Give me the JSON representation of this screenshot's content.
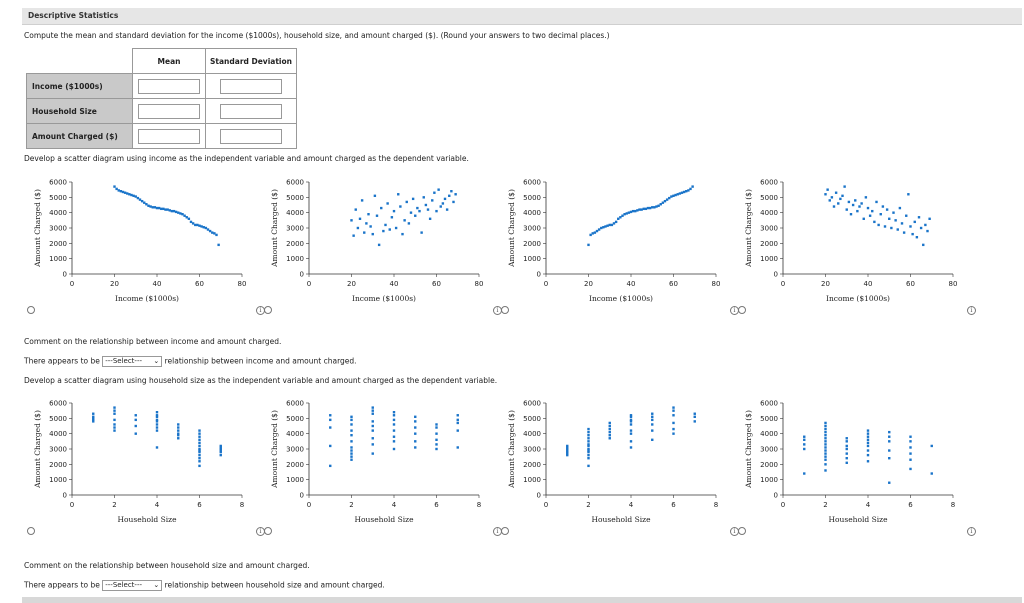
{
  "window": {
    "title": "Descriptive Statistics"
  },
  "instructions": "Compute the mean and standard deviation for the income ($1000s), household size, and amount charged ($). (Round your answers to two decimal places.)",
  "stats_table": {
    "col_mean": "Mean",
    "col_sd": "Standard Deviation",
    "rows": [
      {
        "label": "Income ($1000s)"
      },
      {
        "label": "Household Size"
      },
      {
        "label": "Amount Charged ($)"
      }
    ]
  },
  "section1": {
    "prompt": "Develop a scatter diagram using income as the independent variable and amount charged as the dependent variable.",
    "comment": "Comment on the relationship between income and amount charged.",
    "sentence_pre": "There appears to be",
    "select_value": "---Select---",
    "sentence_post": "relationship between income and amount charged."
  },
  "section2": {
    "prompt": "Develop a scatter diagram using household size as the independent variable and amount charged as the dependent variable.",
    "comment": "Comment on the relationship between household size and amount charged.",
    "sentence_pre": "There appears to be",
    "select_value": "---Select---",
    "sentence_post": "relationship between household size and amount charged."
  },
  "info_glyph": "i",
  "chart_data": [
    {
      "type": "scatter",
      "xlabel": "Income ($1000s)",
      "ylabel": "Amount Charged ($)",
      "xlim": [
        0,
        80
      ],
      "ylim": [
        0,
        6000
      ],
      "xticks": [
        0,
        20,
        40,
        60,
        80
      ],
      "yticks": [
        0,
        1000,
        2000,
        3000,
        4000,
        5000,
        6000
      ],
      "color": "#1a74c9",
      "x": [
        20,
        21,
        22,
        23,
        24,
        25,
        26,
        27,
        28,
        29,
        30,
        31,
        32,
        33,
        34,
        35,
        36,
        37,
        38,
        39,
        40,
        41,
        42,
        43,
        44,
        45,
        46,
        47,
        48,
        49,
        50,
        51,
        52,
        53,
        54,
        55,
        56,
        57,
        58,
        59,
        60,
        61,
        62,
        63,
        64,
        65,
        66,
        67,
        68,
        69
      ],
      "y": [
        5700,
        5550,
        5450,
        5400,
        5350,
        5300,
        5250,
        5200,
        5150,
        5100,
        5050,
        4950,
        4850,
        4750,
        4650,
        4550,
        4450,
        4400,
        4350,
        4350,
        4300,
        4300,
        4250,
        4250,
        4200,
        4200,
        4150,
        4100,
        4100,
        4050,
        4000,
        3950,
        3900,
        3800,
        3700,
        3600,
        3400,
        3300,
        3200,
        3200,
        3150,
        3100,
        3050,
        3000,
        2900,
        2800,
        2700,
        2650,
        2550,
        1900
      ]
    },
    {
      "type": "scatter",
      "xlabel": "Income ($1000s)",
      "ylabel": "Amount Charged ($)",
      "xlim": [
        0,
        80
      ],
      "ylim": [
        0,
        6000
      ],
      "xticks": [
        0,
        20,
        40,
        60,
        80
      ],
      "yticks": [
        0,
        1000,
        2000,
        3000,
        4000,
        5000,
        6000
      ],
      "color": "#1a74c9",
      "x": [
        20,
        21,
        22,
        23,
        24,
        25,
        26,
        27,
        28,
        29,
        30,
        31,
        32,
        33,
        34,
        35,
        36,
        37,
        38,
        39,
        40,
        41,
        42,
        43,
        44,
        45,
        46,
        47,
        48,
        49,
        50,
        51,
        52,
        53,
        54,
        55,
        56,
        57,
        58,
        59,
        60,
        61,
        62,
        63,
        64,
        65,
        66,
        67,
        68,
        69
      ],
      "y": [
        3500,
        2500,
        4200,
        3000,
        3600,
        4800,
        2700,
        3300,
        3900,
        3100,
        2600,
        5100,
        3800,
        1900,
        4300,
        2800,
        3200,
        4600,
        2900,
        3700,
        4100,
        3000,
        5200,
        4400,
        2600,
        3500,
        4700,
        3300,
        4000,
        4900,
        3800,
        4300,
        4100,
        2700,
        5000,
        4500,
        4200,
        3600,
        4800,
        5300,
        4100,
        5500,
        4400,
        4600,
        4900,
        4200,
        5100,
        5400,
        4700,
        5200
      ]
    },
    {
      "type": "scatter",
      "xlabel": "Income ($1000s)",
      "ylabel": "Amount Charged ($)",
      "xlim": [
        0,
        80
      ],
      "ylim": [
        0,
        6000
      ],
      "xticks": [
        0,
        20,
        40,
        60,
        80
      ],
      "yticks": [
        0,
        1000,
        2000,
        3000,
        4000,
        5000,
        6000
      ],
      "color": "#1a74c9",
      "x": [
        20,
        21,
        22,
        23,
        24,
        25,
        26,
        27,
        28,
        29,
        30,
        31,
        32,
        33,
        34,
        35,
        36,
        37,
        38,
        39,
        40,
        41,
        42,
        43,
        44,
        45,
        46,
        47,
        48,
        49,
        50,
        51,
        52,
        53,
        54,
        55,
        56,
        57,
        58,
        59,
        60,
        61,
        62,
        63,
        64,
        65,
        66,
        67,
        68,
        69
      ],
      "y": [
        1900,
        2550,
        2650,
        2700,
        2800,
        2900,
        3000,
        3050,
        3100,
        3150,
        3200,
        3200,
        3300,
        3400,
        3600,
        3700,
        3800,
        3900,
        3950,
        4000,
        4050,
        4100,
        4100,
        4150,
        4200,
        4200,
        4250,
        4250,
        4300,
        4300,
        4350,
        4350,
        4400,
        4450,
        4550,
        4650,
        4750,
        4850,
        4950,
        5050,
        5100,
        5150,
        5200,
        5250,
        5300,
        5350,
        5400,
        5450,
        5550,
        5700
      ]
    },
    {
      "type": "scatter",
      "xlabel": "Income ($1000s)",
      "ylabel": "Amount Charged ($)",
      "xlim": [
        0,
        80
      ],
      "ylim": [
        0,
        6000
      ],
      "xticks": [
        0,
        20,
        40,
        60,
        80
      ],
      "yticks": [
        0,
        1000,
        2000,
        3000,
        4000,
        5000,
        6000
      ],
      "color": "#1a74c9",
      "x": [
        20,
        21,
        22,
        23,
        24,
        25,
        26,
        27,
        28,
        29,
        30,
        31,
        32,
        33,
        34,
        35,
        36,
        37,
        38,
        39,
        40,
        41,
        42,
        43,
        44,
        45,
        46,
        47,
        48,
        49,
        50,
        51,
        52,
        53,
        54,
        55,
        56,
        57,
        58,
        59,
        60,
        61,
        62,
        63,
        64,
        65,
        66,
        67,
        68,
        69
      ],
      "y": [
        5200,
        5500,
        4800,
        5000,
        4400,
        5300,
        4600,
        4900,
        5100,
        5700,
        4200,
        4700,
        3900,
        4500,
        4800,
        4100,
        4400,
        4600,
        3600,
        5000,
        4300,
        3800,
        4100,
        3400,
        4700,
        3200,
        3900,
        4400,
        3100,
        4200,
        3600,
        3000,
        4000,
        3500,
        2900,
        4300,
        3300,
        2700,
        3800,
        5200,
        3100,
        2600,
        3400,
        2400,
        3700,
        3000,
        1900,
        3200,
        2800,
        3600
      ]
    },
    {
      "type": "scatter",
      "xlabel": "Household Size",
      "ylabel": "Amount Charged ($)",
      "xlim": [
        0,
        8
      ],
      "ylim": [
        0,
        6000
      ],
      "xticks": [
        0,
        2,
        4,
        6,
        8
      ],
      "yticks": [
        0,
        1000,
        2000,
        3000,
        4000,
        5000,
        6000
      ],
      "color": "#1a74c9",
      "x": [
        1,
        1,
        1,
        1,
        1,
        2,
        2,
        2,
        2,
        2,
        2,
        2,
        3,
        3,
        3,
        3,
        4,
        4,
        4,
        4,
        4,
        4,
        4,
        4,
        4,
        5,
        5,
        5,
        5,
        5,
        5,
        6,
        6,
        6,
        6,
        6,
        6,
        6,
        6,
        6,
        6,
        6,
        6,
        6,
        7,
        7,
        7,
        7,
        7,
        7
      ],
      "y": [
        5300,
        5100,
        5000,
        4900,
        4800,
        5700,
        5500,
        5300,
        4900,
        4600,
        4400,
        4200,
        5200,
        4900,
        4500,
        4000,
        5400,
        5200,
        5100,
        4900,
        4800,
        4600,
        4400,
        4200,
        3100,
        4600,
        4400,
        4200,
        4000,
        3900,
        3700,
        4200,
        4000,
        3800,
        3600,
        3400,
        3200,
        3000,
        2900,
        2800,
        2600,
        2400,
        2200,
        1900,
        3200,
        3100,
        3000,
        2900,
        2800,
        2600
      ]
    },
    {
      "type": "scatter",
      "xlabel": "Household Size",
      "ylabel": "Amount Charged ($)",
      "xlim": [
        0,
        8
      ],
      "ylim": [
        0,
        6000
      ],
      "xticks": [
        0,
        2,
        4,
        6,
        8
      ],
      "yticks": [
        0,
        1000,
        2000,
        3000,
        4000,
        5000,
        6000
      ],
      "color": "#1a74c9",
      "x": [
        1,
        1,
        1,
        1,
        1,
        2,
        2,
        2,
        2,
        2,
        2,
        2,
        2,
        2,
        2,
        2,
        3,
        3,
        3,
        3,
        3,
        3,
        3,
        3,
        3,
        4,
        4,
        4,
        4,
        4,
        4,
        4,
        4,
        5,
        5,
        5,
        5,
        5,
        5,
        6,
        6,
        6,
        6,
        6,
        6,
        7,
        7,
        7,
        7,
        7
      ],
      "y": [
        5200,
        4900,
        4400,
        3200,
        1900,
        5100,
        4900,
        4600,
        4200,
        3900,
        3500,
        3100,
        2900,
        2700,
        2500,
        2300,
        5700,
        5500,
        5300,
        4800,
        4500,
        4200,
        3700,
        3300,
        2700,
        5400,
        5200,
        4900,
        4600,
        4200,
        3800,
        3500,
        3000,
        5100,
        4800,
        4400,
        4000,
        3500,
        3100,
        4600,
        4400,
        4000,
        3600,
        3300,
        3000,
        5200,
        4900,
        4700,
        4200,
        3100
      ]
    },
    {
      "type": "scatter",
      "xlabel": "Household Size",
      "ylabel": "Amount Charged ($)",
      "xlim": [
        0,
        8
      ],
      "ylim": [
        0,
        6000
      ],
      "xticks": [
        0,
        2,
        4,
        6,
        8
      ],
      "yticks": [
        0,
        1000,
        2000,
        3000,
        4000,
        5000,
        6000
      ],
      "color": "#1a74c9",
      "x": [
        1,
        1,
        1,
        1,
        1,
        1,
        1,
        2,
        2,
        2,
        2,
        2,
        2,
        2,
        2,
        2,
        2,
        2,
        2,
        2,
        3,
        3,
        3,
        3,
        3,
        3,
        4,
        4,
        4,
        4,
        4,
        4,
        4,
        4,
        4,
        5,
        5,
        5,
        5,
        5,
        5,
        6,
        6,
        6,
        6,
        6,
        6,
        7,
        7,
        7
      ],
      "y": [
        3200,
        3100,
        3000,
        2900,
        2800,
        2700,
        2600,
        4300,
        4100,
        3900,
        3700,
        3500,
        3300,
        3200,
        3000,
        2900,
        2800,
        2600,
        2400,
        1900,
        4700,
        4500,
        4300,
        4100,
        3900,
        3700,
        5200,
        5100,
        4900,
        4800,
        4600,
        4200,
        4000,
        3500,
        3100,
        5300,
        5100,
        4900,
        4600,
        4200,
        3600,
        5700,
        5500,
        5200,
        4700,
        4300,
        4000,
        5300,
        5100,
        4800
      ]
    },
    {
      "type": "scatter",
      "xlabel": "Household Size",
      "ylabel": "Amount Charged ($)",
      "xlim": [
        0,
        8
      ],
      "ylim": [
        0,
        6000
      ],
      "xticks": [
        0,
        2,
        4,
        6,
        8
      ],
      "yticks": [
        0,
        1000,
        2000,
        3000,
        4000,
        5000,
        6000
      ],
      "color": "#1a74c9",
      "x": [
        1,
        1,
        1,
        1,
        1,
        2,
        2,
        2,
        2,
        2,
        2,
        2,
        2,
        2,
        2,
        2,
        2,
        2,
        2,
        2,
        3,
        3,
        3,
        3,
        3,
        3,
        3,
        4,
        4,
        4,
        4,
        4,
        4,
        4,
        4,
        4,
        5,
        5,
        5,
        5,
        5,
        5,
        6,
        6,
        6,
        6,
        6,
        6,
        7,
        7
      ],
      "y": [
        3800,
        3600,
        3300,
        3000,
        1400,
        4700,
        4500,
        4300,
        4100,
        3900,
        3700,
        3500,
        3300,
        3100,
        2900,
        2700,
        2500,
        2300,
        2000,
        1600,
        3700,
        3500,
        3200,
        3000,
        2700,
        2400,
        2100,
        4200,
        4000,
        3800,
        3600,
        3400,
        3200,
        2900,
        2600,
        2200,
        4100,
        3800,
        3500,
        2900,
        2400,
        800,
        3800,
        3500,
        3100,
        2700,
        2300,
        1700,
        3200,
        1400
      ]
    }
  ]
}
